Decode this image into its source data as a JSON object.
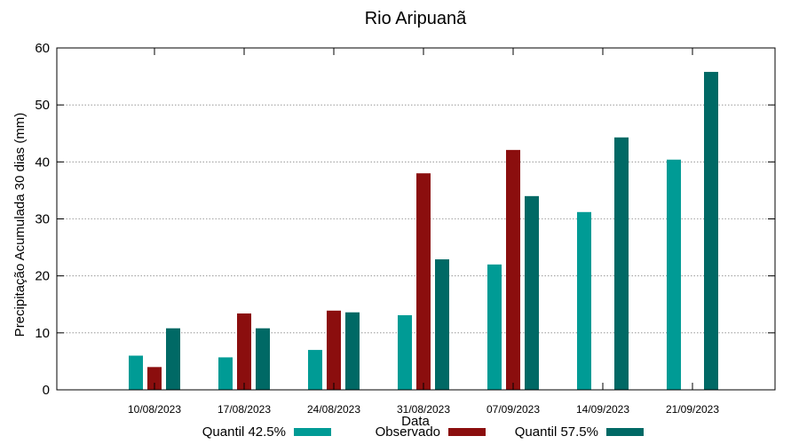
{
  "chart_data": {
    "type": "bar",
    "title": "Rio Aripuanã",
    "xlabel": "Data",
    "ylabel": "Precipitação Acumulada 30 dias (mm)",
    "ylim": [
      0,
      60
    ],
    "yticks": [
      0,
      10,
      20,
      30,
      40,
      50,
      60
    ],
    "grid": true,
    "legend_position": "bottom",
    "categories": [
      "10/08/2023",
      "17/08/2023",
      "24/08/2023",
      "31/08/2023",
      "07/09/2023",
      "14/09/2023",
      "21/09/2023"
    ],
    "series": [
      {
        "name": "Quantil 42.5%",
        "color": "#009b95",
        "values": [
          6.0,
          5.7,
          7.0,
          13.1,
          22.0,
          31.2,
          40.4
        ]
      },
      {
        "name": "Observado",
        "color": "#8b0e0e",
        "values": [
          4.0,
          13.4,
          13.9,
          38.0,
          42.1,
          null,
          null
        ]
      },
      {
        "name": "Quantil 57.5%",
        "color": "#006965",
        "values": [
          10.8,
          10.8,
          13.6,
          22.9,
          34.0,
          44.3,
          55.8
        ]
      }
    ]
  }
}
